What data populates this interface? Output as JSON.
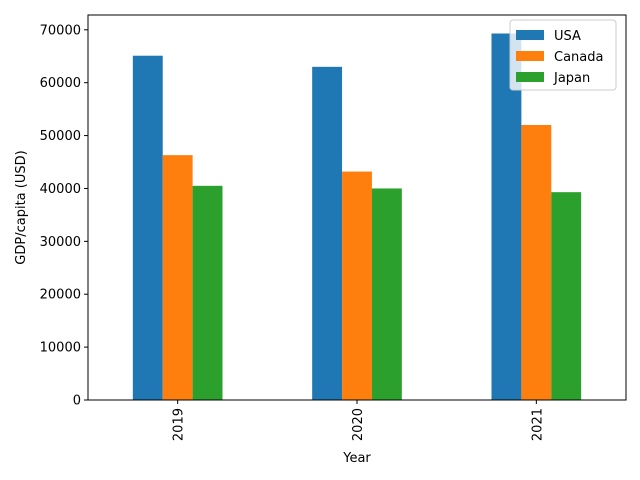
{
  "chart_data": {
    "type": "bar",
    "title": "",
    "xlabel": "Year",
    "ylabel": "GDP/capita (USD)",
    "categories": [
      "2019",
      "2020",
      "2021"
    ],
    "series": [
      {
        "name": "USA",
        "color": "#1f77b4",
        "values": [
          65100,
          63000,
          69300
        ]
      },
      {
        "name": "Canada",
        "color": "#ff7f0e",
        "values": [
          46300,
          43200,
          52000
        ]
      },
      {
        "name": "Japan",
        "color": "#2ca02c",
        "values": [
          40500,
          40000,
          39300
        ]
      }
    ],
    "ylim": [
      0,
      72800
    ],
    "yticks": [
      0,
      10000,
      20000,
      30000,
      40000,
      50000,
      60000,
      70000
    ],
    "grid": false,
    "legend": {
      "position": "top-right"
    }
  }
}
